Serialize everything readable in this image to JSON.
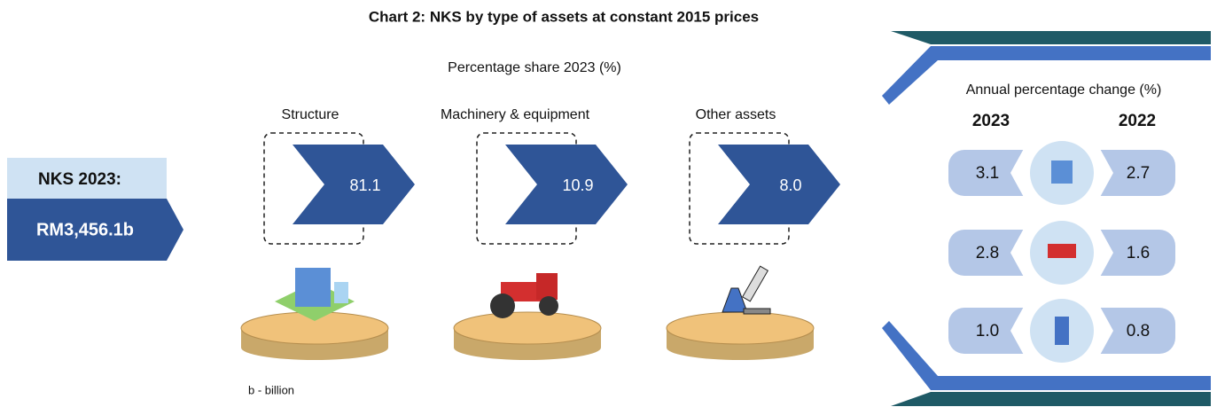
{
  "title": "Chart 2: NKS by type of assets at constant 2015 prices",
  "subtitle": "Percentage share 2023 (%)",
  "total": {
    "label": "NKS 2023:",
    "value": "RM3,456.1b"
  },
  "shares": [
    {
      "name": "Structure",
      "value": "81.1"
    },
    {
      "name": "Machinery & equipment",
      "value": "10.9"
    },
    {
      "name": "Other assets",
      "value": "8.0"
    }
  ],
  "change": {
    "title": "Annual percentage change (%)",
    "years": [
      "2023",
      "2022"
    ],
    "rows": [
      [
        "3.1",
        "2.7"
      ],
      [
        "2.8",
        "1.6"
      ],
      [
        "1.0",
        "0.8"
      ]
    ]
  },
  "note": "b - billion"
}
